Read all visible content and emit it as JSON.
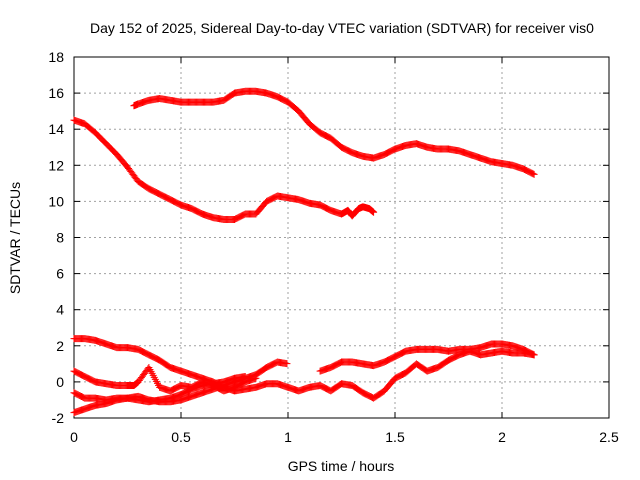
{
  "chart_data": {
    "type": "scatter",
    "title": "Day 152 of 2025, Sidereal Day-to-day VTEC variation (SDTVAR) for receiver vis0",
    "xlabel": "GPS time / hours",
    "ylabel": "SDTVAR / TECUs",
    "xlim": [
      0,
      2.5
    ],
    "ylim": [
      -2,
      18
    ],
    "xticks": [
      0,
      0.5,
      1,
      1.5,
      2,
      2.5
    ],
    "xtick_labels": [
      "0",
      "0.5",
      "1",
      "1.5",
      "2",
      "2.5"
    ],
    "yticks": [
      -2,
      0,
      2,
      4,
      6,
      8,
      10,
      12,
      14,
      16,
      18
    ],
    "ytick_labels": [
      "-2",
      "0",
      "2",
      "4",
      "6",
      "8",
      "10",
      "12",
      "14",
      "16",
      "18"
    ],
    "grid": true,
    "marker": "+",
    "color": "#ff0000",
    "series": [
      {
        "name": "upper-track",
        "x": [
          0.28,
          0.3,
          0.35,
          0.4,
          0.45,
          0.5,
          0.55,
          0.6,
          0.65,
          0.7,
          0.75,
          0.8,
          0.85,
          0.9,
          0.95,
          1.0,
          1.05,
          1.1,
          1.15,
          1.2,
          1.25,
          1.3,
          1.35,
          1.4,
          1.45,
          1.5,
          1.55,
          1.6,
          1.65,
          1.7,
          1.75,
          1.8,
          1.85,
          1.9,
          1.95,
          2.0,
          2.05,
          2.1,
          2.15
        ],
        "y": [
          15.3,
          15.4,
          15.6,
          15.7,
          15.6,
          15.5,
          15.5,
          15.5,
          15.5,
          15.6,
          16.0,
          16.1,
          16.1,
          16.0,
          15.8,
          15.5,
          15.0,
          14.3,
          13.8,
          13.5,
          13.0,
          12.7,
          12.5,
          12.4,
          12.6,
          12.9,
          13.1,
          13.2,
          13.0,
          12.9,
          12.9,
          12.8,
          12.6,
          12.4,
          12.2,
          12.1,
          12.0,
          11.8,
          11.5
        ]
      },
      {
        "name": "descending-track",
        "x": [
          0.0,
          0.05,
          0.1,
          0.15,
          0.2,
          0.25,
          0.3,
          0.35,
          0.4,
          0.45,
          0.5,
          0.55,
          0.6,
          0.65,
          0.7,
          0.75,
          0.8,
          0.85,
          0.9,
          0.95,
          1.0,
          1.05,
          1.1,
          1.15,
          1.2,
          1.25,
          1.28,
          1.3,
          1.33,
          1.35,
          1.38,
          1.4
        ],
        "y": [
          14.5,
          14.3,
          13.8,
          13.2,
          12.6,
          11.9,
          11.1,
          10.7,
          10.4,
          10.1,
          9.8,
          9.6,
          9.3,
          9.1,
          9.0,
          9.0,
          9.3,
          9.3,
          10.0,
          10.3,
          10.2,
          10.1,
          9.9,
          9.8,
          9.5,
          9.3,
          9.5,
          9.2,
          9.6,
          9.7,
          9.6,
          9.4
        ]
      },
      {
        "name": "lower-track-a",
        "x": [
          0.0,
          0.05,
          0.1,
          0.15,
          0.2,
          0.25,
          0.3,
          0.35,
          0.4,
          0.45,
          0.5,
          0.55,
          0.6,
          0.65,
          0.7,
          0.75,
          0.8,
          0.85,
          0.9,
          0.95,
          1.0,
          1.05,
          1.1,
          1.15,
          1.2,
          1.25,
          1.3,
          1.35,
          1.4,
          1.45,
          1.5,
          1.55,
          1.6,
          1.65,
          1.7,
          1.75,
          1.8,
          1.85,
          1.9,
          1.95,
          2.0,
          2.05,
          2.1,
          2.15
        ],
        "y": [
          2.4,
          2.4,
          2.3,
          2.1,
          1.9,
          1.9,
          1.8,
          1.5,
          1.2,
          0.8,
          0.6,
          0.4,
          0.2,
          0.0,
          -0.3,
          -0.5,
          -0.4,
          -0.3,
          -0.1,
          -0.1,
          -0.3,
          -0.5,
          -0.3,
          -0.2,
          -0.5,
          -0.1,
          -0.2,
          -0.6,
          -0.9,
          -0.5,
          0.2,
          0.5,
          1.0,
          0.6,
          0.8,
          1.2,
          1.5,
          1.7,
          1.5,
          1.6,
          1.7,
          1.6,
          1.6,
          1.5
        ]
      },
      {
        "name": "lower-track-b",
        "x": [
          0.0,
          0.05,
          0.1,
          0.15,
          0.2,
          0.25,
          0.3,
          0.35,
          0.4,
          0.45,
          0.5,
          0.55,
          0.6,
          0.65,
          0.7,
          0.75,
          0.8,
          0.85,
          0.9,
          0.95,
          1.0,
          1.05,
          1.1,
          1.15,
          1.2,
          1.25,
          1.3,
          1.35,
          1.4,
          1.45,
          1.5,
          1.55,
          1.6,
          1.65,
          1.7,
          1.75,
          1.8,
          1.85,
          1.9,
          1.95,
          2.0,
          2.05,
          2.1,
          2.15
        ],
        "y": [
          -1.7,
          -1.5,
          -1.3,
          -1.2,
          -1.0,
          -0.9,
          -0.8,
          -1.0,
          -1.1,
          -1.1,
          -1.0,
          -0.8,
          -0.6,
          -0.4,
          -0.2,
          0.0,
          0.2,
          0.4,
          0.8,
          1.1,
          1.0,
          null,
          null,
          0.6,
          0.8,
          1.1,
          1.1,
          1.0,
          0.9,
          1.1,
          1.4,
          1.7,
          1.8,
          1.8,
          1.8,
          1.7,
          1.8,
          1.8,
          1.9,
          2.1,
          2.1,
          2.0,
          1.8,
          1.5
        ]
      },
      {
        "name": "lower-track-c",
        "x": [
          0.0,
          0.05,
          0.1,
          0.15,
          0.2,
          0.25,
          0.28,
          0.3,
          0.35,
          0.4,
          0.45,
          0.5,
          0.55,
          0.6,
          0.65,
          0.7,
          0.75,
          0.8,
          0.85
        ],
        "y": [
          0.6,
          0.3,
          0.0,
          -0.1,
          -0.2,
          -0.2,
          -0.2,
          0.0,
          0.8,
          -0.3,
          -0.5,
          -0.2,
          -0.3,
          0.0,
          -0.2,
          -0.5,
          -0.3,
          0.0,
          0.2
        ]
      },
      {
        "name": "lower-track-d",
        "x": [
          0.0,
          0.05,
          0.1,
          0.15,
          0.2,
          0.25,
          0.3,
          0.35,
          0.4,
          0.45,
          0.5,
          0.55,
          0.6,
          0.65,
          0.7,
          0.75,
          0.8
        ],
        "y": [
          -0.6,
          -0.9,
          -0.9,
          -1.0,
          -0.9,
          -0.9,
          -1.0,
          -1.1,
          -1.0,
          -0.9,
          -0.7,
          -0.4,
          -0.2,
          -0.1,
          0.0,
          0.2,
          0.3
        ]
      }
    ]
  }
}
